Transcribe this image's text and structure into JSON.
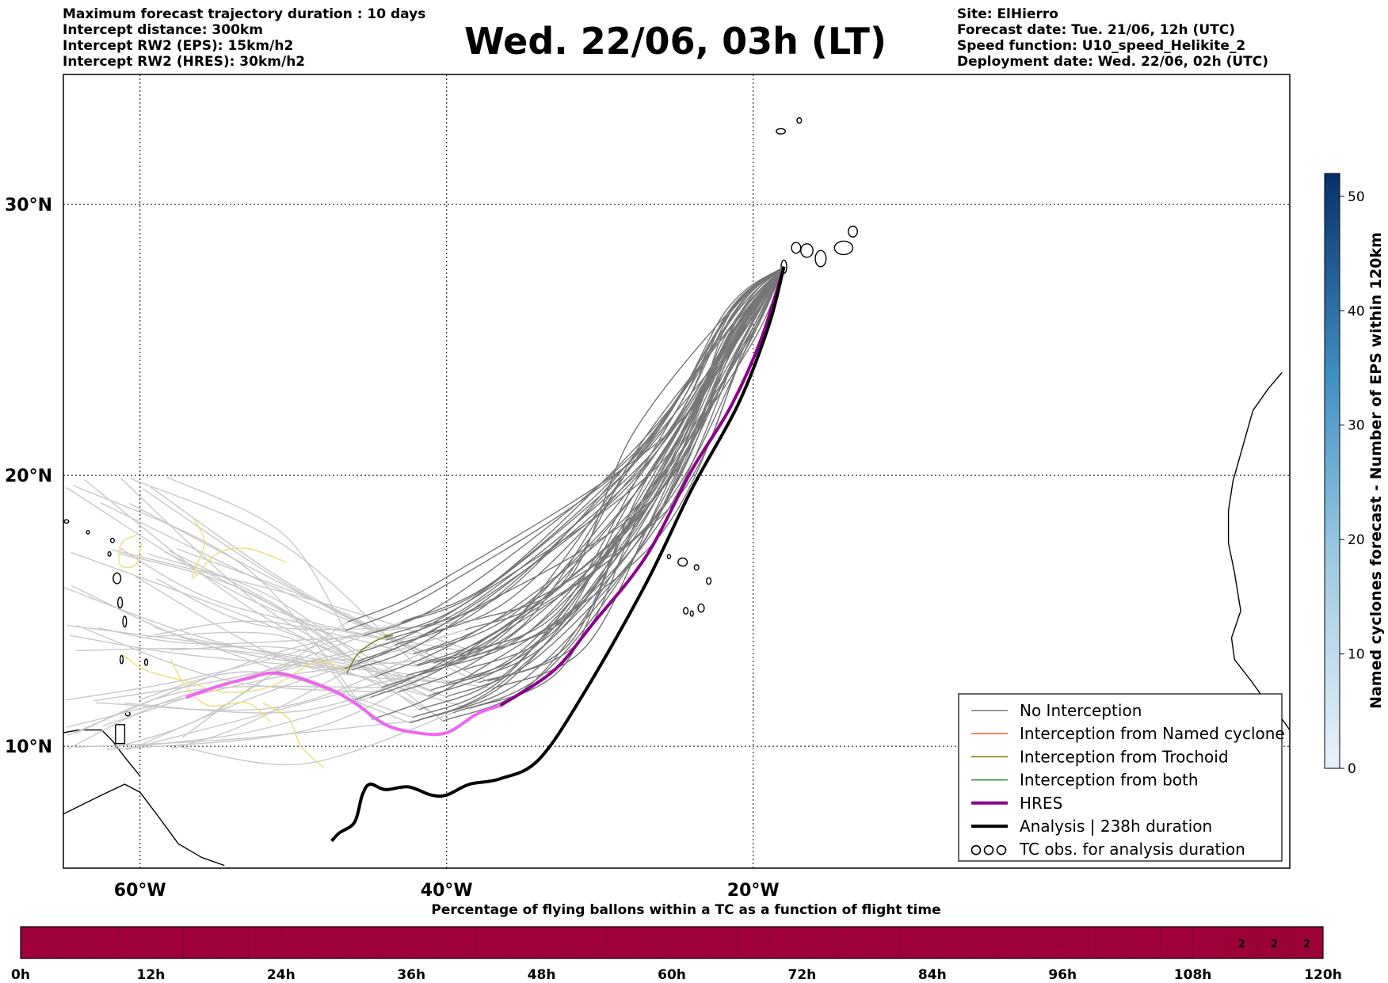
{
  "header_left": {
    "line1": "Maximum forecast trajectory duration : 10 days",
    "line2": "Intercept distance: 300km",
    "line3": "Intercept RW2 (EPS):  15km/h2",
    "line4": "Intercept RW2 (HRES): 30km/h2"
  },
  "title": "Wed. 22/06, 03h (LT)",
  "header_right": {
    "line1": "Site: ElHierro",
    "line2": "Forecast date: Tue. 21/06, 12h (UTC)",
    "line3": "Speed function: U10_speed_Helikite_2",
    "line4": "Deployment date: Wed. 22/06, 02h (UTC)"
  },
  "map": {
    "lon_range": [
      -65,
      15
    ],
    "lat_range": [
      5.5,
      34.8
    ],
    "lon_ticks": [
      {
        "value": -60,
        "label": "60°W"
      },
      {
        "value": -40,
        "label": "40°W"
      },
      {
        "value": -20,
        "label": "20°W"
      }
    ],
    "lat_ticks": [
      {
        "value": 30,
        "label": "30°N"
      },
      {
        "value": 20,
        "label": "20°N"
      },
      {
        "value": 10,
        "label": "10°N"
      }
    ],
    "grid": "dotted",
    "launch_site": {
      "lon": -18.0,
      "lat": 27.7
    },
    "colors": {
      "no_interception": "#777777",
      "eps_other": "#c8c8c8",
      "named_cyclone": "#ff5a1e",
      "trochoid": "#7a7a00",
      "both": "#1a8c1a",
      "hres": "#8b008b",
      "hres_bright": "#ee66ee",
      "analysis": "#000000",
      "trochoid_light": "#e8e07a"
    }
  },
  "legend": {
    "position": "lower-right",
    "items": [
      {
        "label": "No Interception",
        "color": "#777777",
        "width": 1.5,
        "kind": "line"
      },
      {
        "label": "Interception from Named cyclone",
        "color": "#ff5a1e",
        "width": 1.5,
        "kind": "line"
      },
      {
        "label": "Interception from Trochoid",
        "color": "#7a7a00",
        "width": 1.5,
        "kind": "line"
      },
      {
        "label": "Interception from both",
        "color": "#1a8c1a",
        "width": 1.5,
        "kind": "line"
      },
      {
        "label": "HRES",
        "color": "#8b008b",
        "width": 4,
        "kind": "line"
      },
      {
        "label": "Analysis | 238h duration",
        "color": "#000000",
        "width": 4,
        "kind": "line"
      },
      {
        "label": "TC obs. for analysis duration",
        "color": "#000000",
        "width": 1,
        "kind": "symbol"
      }
    ]
  },
  "colorbar": {
    "label": "Named cyclones forecast - Number of EPS within 120km",
    "min": 0,
    "max": 52,
    "ticks": [
      0,
      10,
      20,
      30,
      40,
      50
    ],
    "color_low": "#e8f1fa",
    "color_high": "#08306b"
  },
  "timebar": {
    "title": "Percentage of flying ballons within a TC as a function of flight time",
    "tick_labels": [
      "0h",
      "12h",
      "24h",
      "36h",
      "48h",
      "60h",
      "72h",
      "84h",
      "96h",
      "108h",
      "120h"
    ],
    "cell_count": 40,
    "fill_color": "#a0003a",
    "value_color": "#9b0036",
    "values": [
      {
        "cell": 37,
        "label": "2"
      },
      {
        "cell": 38,
        "label": "2"
      },
      {
        "cell": 39,
        "label": "2"
      }
    ]
  }
}
